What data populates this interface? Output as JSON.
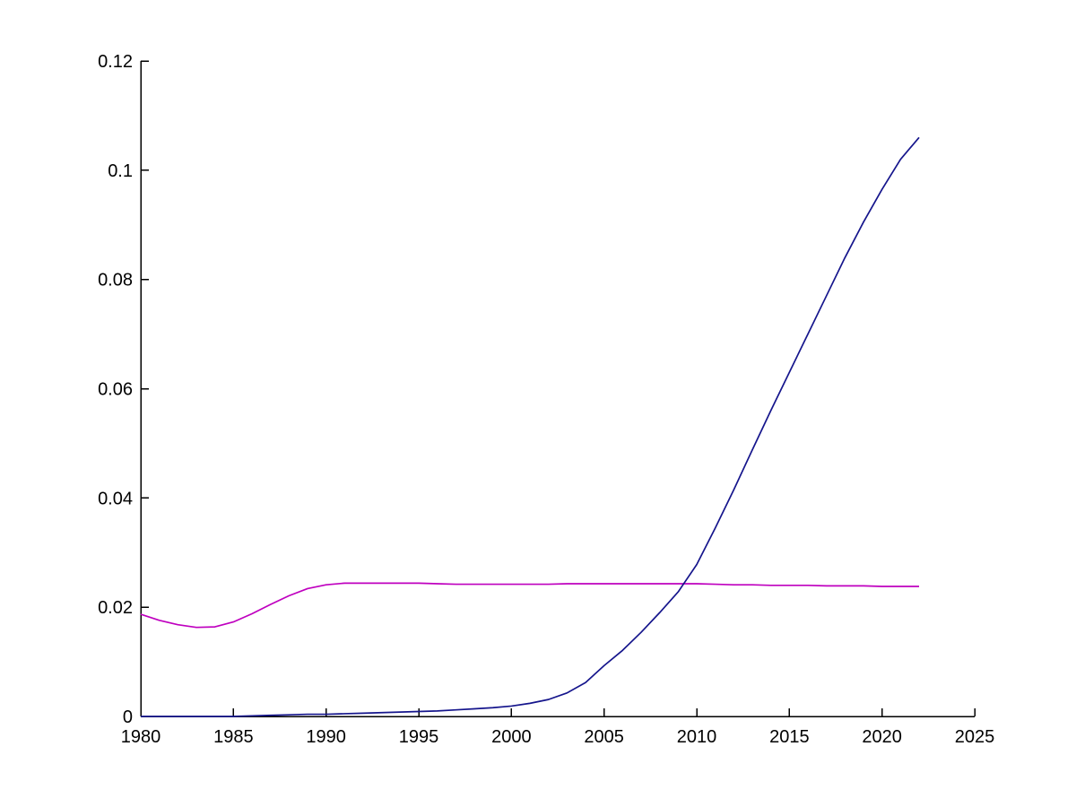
{
  "figure": {
    "background_color": "#ffffff",
    "axis_color": "#000000"
  },
  "chart_data": {
    "type": "line",
    "title": "",
    "xlabel": "",
    "ylabel": "",
    "grid": false,
    "legend": null,
    "xlim": [
      1980,
      2025
    ],
    "ylim": [
      0,
      0.12
    ],
    "x_ticks": [
      1980,
      1985,
      1990,
      1995,
      2000,
      2005,
      2010,
      2015,
      2020,
      2025
    ],
    "x_tick_labels": [
      "1980",
      "1985",
      "1990",
      "1995",
      "2000",
      "2005",
      "2010",
      "2015",
      "2020",
      "2025"
    ],
    "y_ticks": [
      0,
      0.02,
      0.04,
      0.06,
      0.08,
      0.1,
      0.12
    ],
    "y_tick_labels": [
      "0",
      "0.02",
      "0.04",
      "0.06",
      "0.08",
      "0.1",
      "0.12"
    ],
    "x": [
      1980,
      1981,
      1982,
      1983,
      1984,
      1985,
      1986,
      1987,
      1988,
      1989,
      1990,
      1991,
      1992,
      1993,
      1994,
      1995,
      1996,
      1997,
      1998,
      1999,
      2000,
      2001,
      2002,
      2003,
      2004,
      2005,
      2006,
      2007,
      2008,
      2009,
      2010,
      2011,
      2012,
      2013,
      2014,
      2015,
      2016,
      2017,
      2018,
      2019,
      2020,
      2021,
      2022
    ],
    "series": [
      {
        "name": "magenta-line",
        "color": "#bf00bf",
        "values": [
          0.0187,
          0.0176,
          0.0168,
          0.0163,
          0.0164,
          0.0173,
          0.0188,
          0.0205,
          0.0221,
          0.0234,
          0.0241,
          0.0244,
          0.0244,
          0.0244,
          0.0244,
          0.0244,
          0.0243,
          0.0242,
          0.0242,
          0.0242,
          0.0242,
          0.0242,
          0.0242,
          0.0243,
          0.0243,
          0.0243,
          0.0243,
          0.0243,
          0.0243,
          0.0243,
          0.0243,
          0.0242,
          0.0241,
          0.0241,
          0.024,
          0.024,
          0.024,
          0.0239,
          0.0239,
          0.0239,
          0.0238,
          0.0238,
          0.0238
        ]
      },
      {
        "name": "navy-line",
        "color": "#15158c",
        "values": [
          0.0,
          0.0,
          0.0,
          0.0,
          0.0,
          0.0,
          0.0001,
          0.0002,
          0.0003,
          0.0004,
          0.0004,
          0.0005,
          0.0006,
          0.0007,
          0.0008,
          0.0009,
          0.001,
          0.0012,
          0.0014,
          0.0016,
          0.0019,
          0.0024,
          0.0031,
          0.0043,
          0.0062,
          0.0093,
          0.0121,
          0.0154,
          0.019,
          0.0228,
          0.0278,
          0.0345,
          0.0415,
          0.0488,
          0.056,
          0.063,
          0.07,
          0.077,
          0.084,
          0.0905,
          0.0965,
          0.102,
          0.106
        ]
      }
    ]
  }
}
